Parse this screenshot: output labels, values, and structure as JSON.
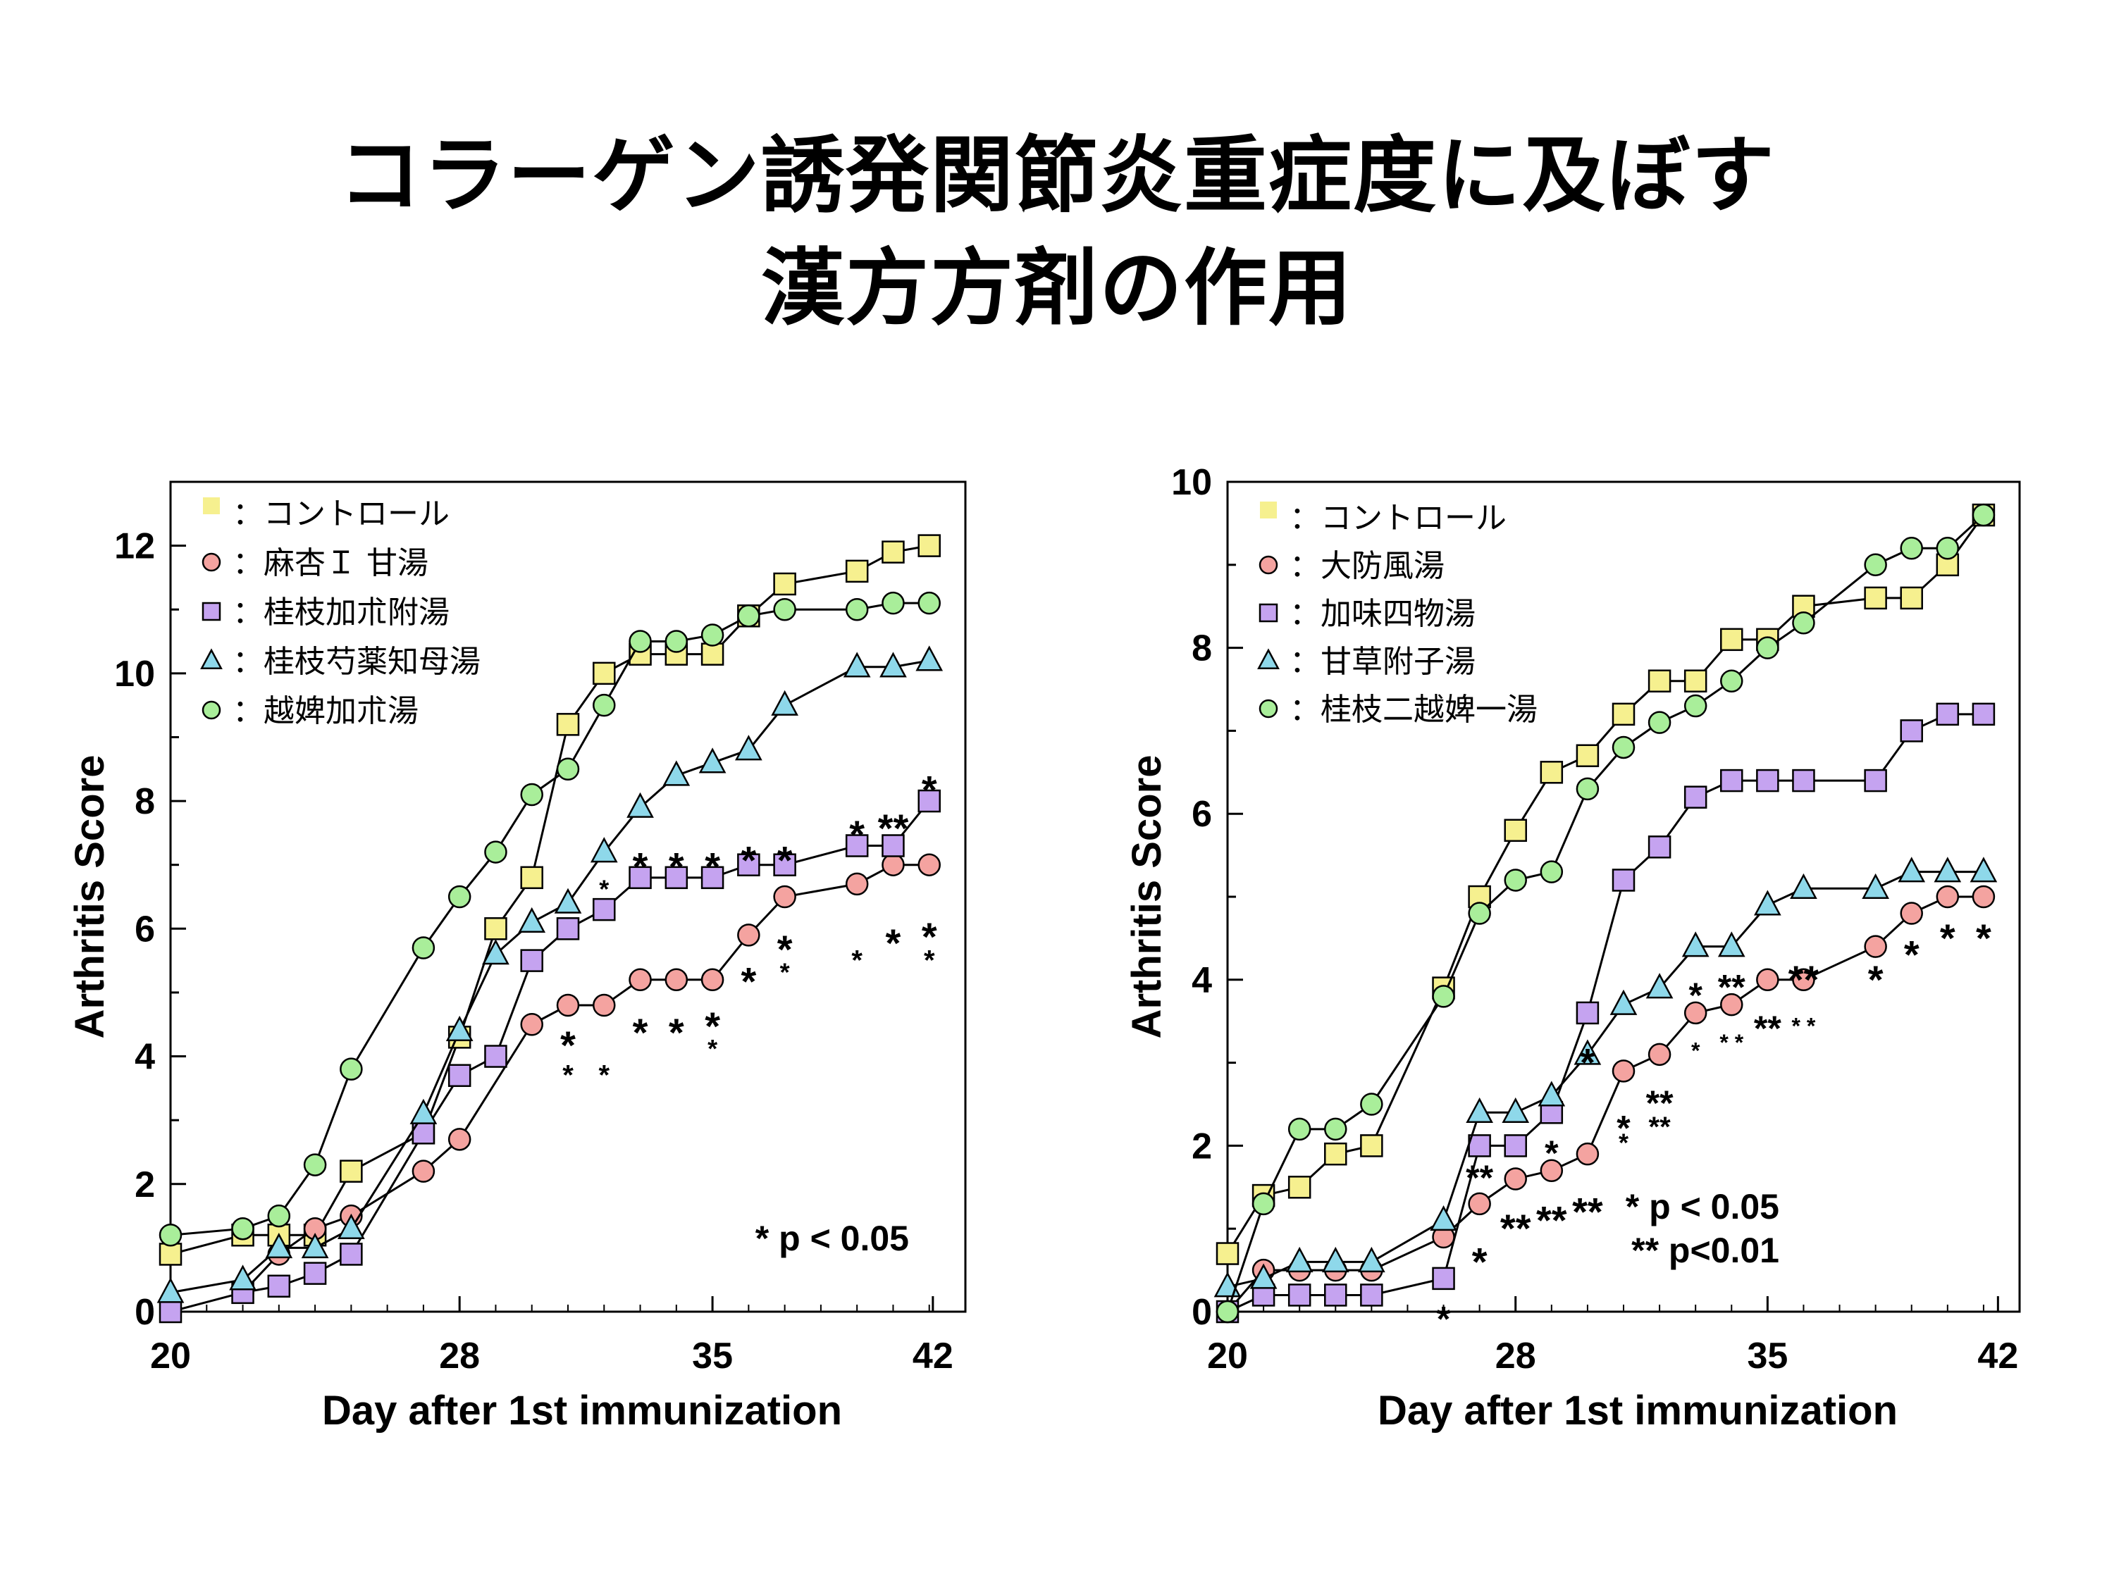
{
  "title": {
    "line1": "コラーゲン誘発関節炎重症度に及ぼす",
    "line2": "漢方方剤の作用"
  },
  "chart_data": [
    {
      "type": "line",
      "xlabel": "Day after 1st immunization",
      "ylabel": "Arthritis Score",
      "xlim": [
        20,
        42
      ],
      "ylim": [
        0,
        13
      ],
      "xticks": [
        "20",
        "28",
        "35",
        "42"
      ],
      "yticks": [
        "0",
        "2",
        "4",
        "6",
        "8",
        "10",
        "12"
      ],
      "legend_position": "top-left",
      "note": [
        "* p < 0.05"
      ],
      "series": [
        {
          "name": "コントロール",
          "marker": "square",
          "color": "#f6f08f",
          "x": [
            20,
            22,
            23,
            24,
            25,
            27,
            28,
            29,
            30,
            31,
            32,
            33,
            34,
            35,
            36,
            37,
            39,
            40,
            41
          ],
          "y": [
            0.9,
            1.2,
            1.2,
            1.2,
            2.2,
            2.8,
            4.3,
            6.0,
            6.8,
            9.2,
            10.0,
            10.3,
            10.3,
            10.3,
            10.9,
            11.4,
            11.6,
            11.9,
            12.0
          ]
        },
        {
          "name": "麻杏Ｉ 甘湯",
          "marker": "circle",
          "color": "#f4a3a0",
          "x": [
            22,
            23,
            24,
            25,
            27,
            28,
            30,
            31,
            32,
            33,
            34,
            35,
            36,
            37,
            39,
            40,
            41
          ],
          "y": [
            0.3,
            0.9,
            1.3,
            1.5,
            2.2,
            2.7,
            4.5,
            4.8,
            4.8,
            5.2,
            5.2,
            5.2,
            5.9,
            6.5,
            6.7,
            7.0,
            7.0
          ]
        },
        {
          "name": "桂枝加朮附湯",
          "marker": "square",
          "color": "#c5a3f0",
          "x": [
            20,
            22,
            23,
            24,
            25,
            27,
            28,
            29,
            30,
            31,
            32,
            33,
            34,
            35,
            36,
            37,
            39,
            40,
            41
          ],
          "y": [
            0.0,
            0.3,
            0.4,
            0.6,
            0.9,
            2.8,
            3.7,
            4.0,
            5.5,
            6.0,
            6.3,
            6.8,
            6.8,
            6.8,
            7.0,
            7.0,
            7.3,
            7.3,
            8.0
          ]
        },
        {
          "name": "桂枝芍薬知母湯",
          "marker": "triangle",
          "color": "#8ed8ea",
          "x": [
            20,
            22,
            23,
            24,
            25,
            27,
            28,
            29,
            30,
            31,
            32,
            33,
            34,
            35,
            36,
            37,
            39,
            40,
            41
          ],
          "y": [
            0.3,
            0.5,
            1.0,
            1.0,
            1.3,
            3.1,
            4.4,
            5.6,
            6.1,
            6.4,
            7.2,
            7.9,
            8.4,
            8.6,
            8.8,
            9.5,
            10.1,
            10.1,
            10.2
          ]
        },
        {
          "name": "越婢加朮湯",
          "marker": "circle",
          "color": "#a9ee9a",
          "x": [
            20,
            22,
            23,
            24,
            25,
            27,
            28,
            29,
            30,
            31,
            32,
            33,
            34,
            35,
            36,
            37,
            39,
            40,
            41
          ],
          "y": [
            1.2,
            1.3,
            1.5,
            2.3,
            3.8,
            5.7,
            6.5,
            7.2,
            8.1,
            8.5,
            9.5,
            10.5,
            10.5,
            10.6,
            10.9,
            11.0,
            11.0,
            11.1,
            11.1
          ]
        }
      ]
    },
    {
      "type": "line",
      "xlabel": "Day after 1st immunization",
      "ylabel": "Arthritis Score",
      "xlim": [
        20,
        42
      ],
      "ylim": [
        0,
        10
      ],
      "xticks": [
        "20",
        "28",
        "35",
        "42"
      ],
      "yticks": [
        "0",
        "2",
        "4",
        "6",
        "8",
        "10"
      ],
      "legend_position": "top-left",
      "note": [
        "* p < 0.05",
        "** p<0.01"
      ],
      "series": [
        {
          "name": "コントロール",
          "marker": "square",
          "color": "#f6f08f",
          "x": [
            20,
            21,
            22,
            23,
            24,
            26,
            27,
            28,
            29,
            30,
            31,
            32,
            33,
            34,
            35,
            36,
            38,
            39,
            40,
            41
          ],
          "y": [
            0.7,
            1.4,
            1.5,
            1.9,
            2.0,
            3.9,
            5.0,
            5.8,
            6.5,
            6.7,
            7.2,
            7.6,
            7.6,
            8.1,
            8.1,
            8.5,
            8.6,
            8.6,
            9.0,
            9.6
          ]
        },
        {
          "name": "大防風湯",
          "marker": "circle",
          "color": "#f4a3a0",
          "x": [
            20,
            21,
            22,
            23,
            24,
            26,
            27,
            28,
            29,
            30,
            31,
            32,
            33,
            34,
            35,
            36,
            38,
            39,
            40,
            41
          ],
          "y": [
            0.0,
            0.5,
            0.5,
            0.5,
            0.5,
            0.9,
            1.3,
            1.6,
            1.7,
            1.9,
            2.9,
            3.1,
            3.6,
            3.7,
            4.0,
            4.0,
            4.4,
            4.8,
            5.0,
            5.0
          ]
        },
        {
          "name": "加味四物湯",
          "marker": "square",
          "color": "#c5a3f0",
          "x": [
            20,
            21,
            22,
            23,
            24,
            26,
            27,
            28,
            29,
            30,
            31,
            32,
            33,
            34,
            35,
            36,
            38,
            39,
            40,
            41
          ],
          "y": [
            0.0,
            0.2,
            0.2,
            0.2,
            0.2,
            0.4,
            2.0,
            2.0,
            2.4,
            3.6,
            5.2,
            5.6,
            6.2,
            6.4,
            6.4,
            6.4,
            6.4,
            7.0,
            7.2,
            7.2
          ]
        },
        {
          "name": "甘草附子湯",
          "marker": "triangle",
          "color": "#8ed8ea",
          "x": [
            20,
            21,
            22,
            23,
            24,
            26,
            27,
            28,
            29,
            30,
            31,
            32,
            33,
            34,
            35,
            36,
            38,
            39,
            40,
            41
          ],
          "y": [
            0.3,
            0.4,
            0.6,
            0.6,
            0.6,
            1.1,
            2.4,
            2.4,
            2.6,
            3.1,
            3.7,
            3.9,
            4.4,
            4.4,
            4.9,
            5.1,
            5.1,
            5.3,
            5.3,
            5.3
          ]
        },
        {
          "name": "桂枝二越婢一湯",
          "marker": "circle",
          "color": "#a9ee9a",
          "x": [
            20,
            21,
            22,
            23,
            24,
            26,
            27,
            28,
            29,
            30,
            31,
            32,
            33,
            34,
            35,
            36,
            38,
            39,
            40,
            41
          ],
          "y": [
            0.0,
            1.3,
            2.2,
            2.2,
            2.5,
            3.8,
            4.8,
            5.2,
            5.3,
            6.3,
            6.8,
            7.1,
            7.3,
            7.6,
            8.0,
            8.3,
            9.0,
            9.2,
            9.2,
            9.6
          ]
        }
      ]
    }
  ]
}
